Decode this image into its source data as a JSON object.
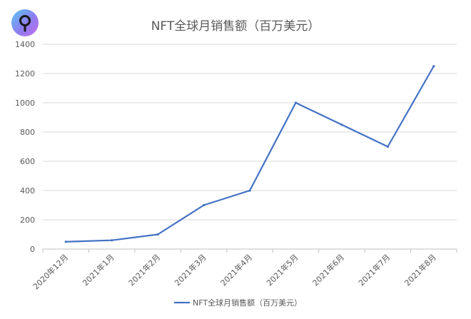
{
  "chart_data": {
    "type": "line",
    "title": "NFT全球月销售额（百万美元）",
    "xlabel": "",
    "ylabel": "",
    "categories": [
      "2020年12月",
      "2021年1月",
      "2021年2月",
      "2021年3月",
      "2021年4月",
      "2021年5月",
      "2021年6月",
      "2021年7月",
      "2021年8月"
    ],
    "series": [
      {
        "name": "NFT全球月销售额（百万美元）",
        "values": [
          50,
          60,
          100,
          300,
          400,
          1000,
          850,
          700,
          1250
        ],
        "color": "#4472C4"
      }
    ],
    "ylim": [
      0,
      1400
    ],
    "yticks": [
      0,
      200,
      400,
      600,
      800,
      1000,
      1200,
      1400
    ],
    "grid": true,
    "legend_position": "bottom"
  },
  "logo": {
    "icon": "magnifier-pin-icon",
    "colors": [
      "#5BC8F5",
      "#8E7CF0",
      "#C06CE8"
    ]
  }
}
